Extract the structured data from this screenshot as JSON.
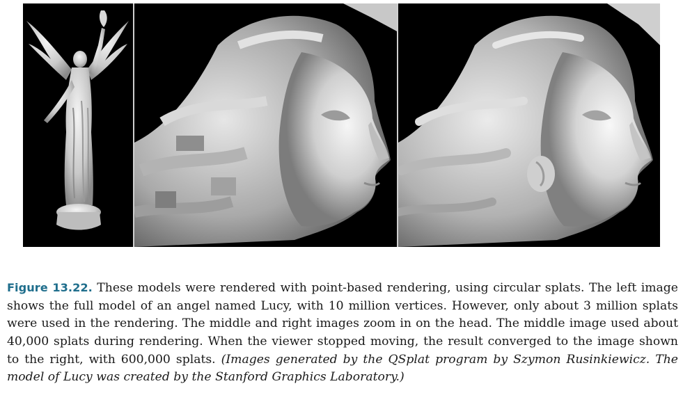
{
  "figure": {
    "panels": [
      {
        "name": "full-lucy-model",
        "description_icon": "angel-statue-render"
      },
      {
        "name": "head-40k-splats",
        "description_icon": "head-closeup-render"
      },
      {
        "name": "head-600k-splats",
        "description_icon": "head-closeup-render-smooth"
      }
    ],
    "colors": {
      "background": "#000000",
      "caption_label": "#1f6e8c",
      "text": "#1a1a1a"
    }
  },
  "caption": {
    "label": "Figure 13.22.",
    "body": "These models were rendered with point-based rendering, using circular splats. The left image shows the full model of an angel named Lucy, with 10 million vertices. However, only about 3 million splats were used in the rendering. The middle and right images zoom in on the head. The middle image used about 40,000 splats during rendering. When the viewer stopped moving, the result converged to the image shown to the right, with 600,000 splats.",
    "credit": "(Images generated by the QSplat program by Szymon Rusinkiewicz. The model of Lucy was created by the Stanford Graphics Laboratory.)"
  }
}
